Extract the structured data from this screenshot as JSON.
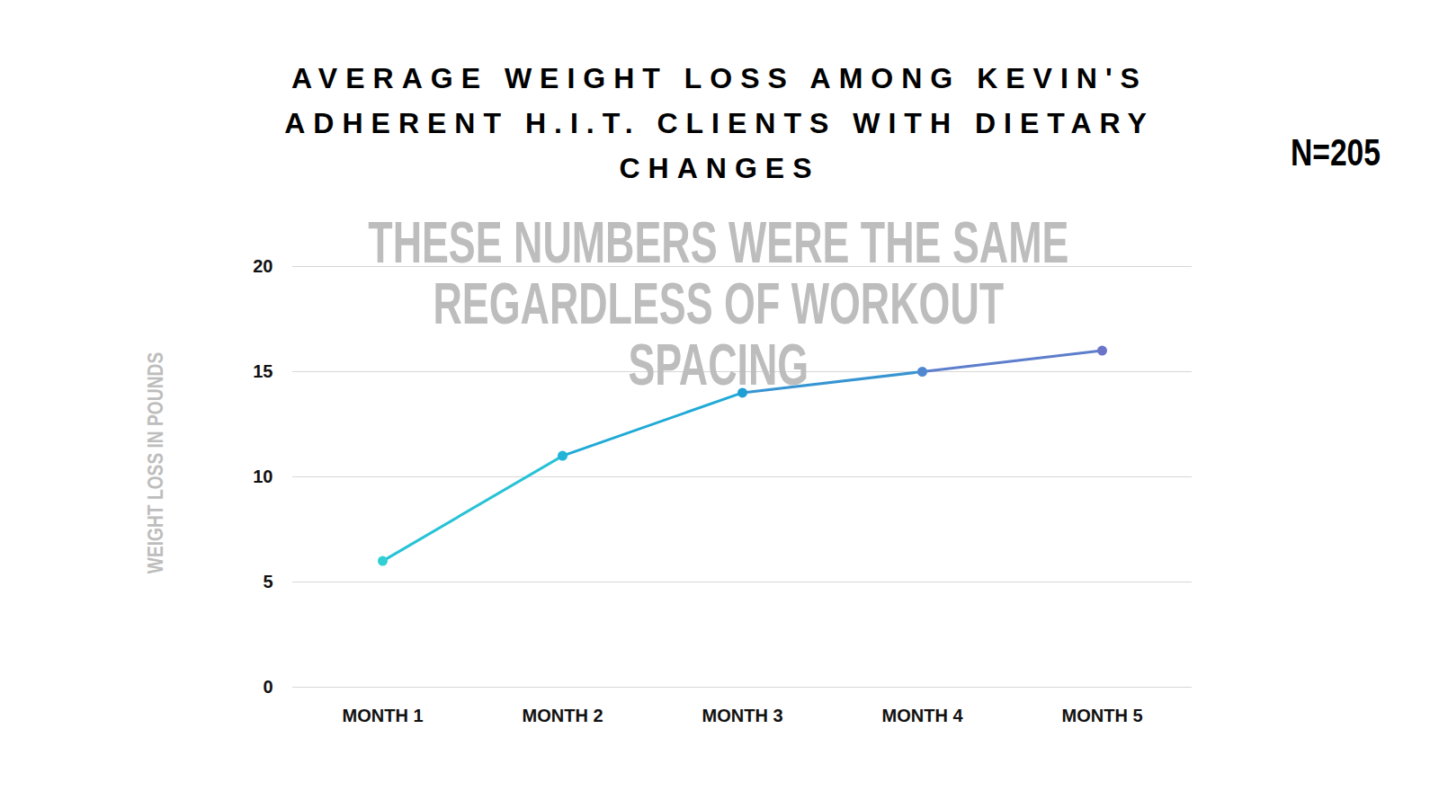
{
  "chart_data": {
    "type": "line",
    "title": "AVERAGE WEIGHT LOSS AMONG KEVIN'S ADHERENT H.I.T. CLIENTS WITH DIETARY CHANGES",
    "ylabel": "WEIGHT LOSS IN POUNDS",
    "annotations": [
      "N=205",
      "THESE NUMBERS WERE THE SAME\nREGARDLESS OF WORKOUT SPACING"
    ],
    "categories": [
      "MONTH 1",
      "MONTH 2",
      "MONTH 3",
      "MONTH 4",
      "MONTH 5"
    ],
    "values": [
      6,
      11,
      14,
      15,
      16
    ],
    "colors": [
      "#2fcfd3",
      "#1fb4d8",
      "#1e9fd3",
      "#4f88d0",
      "#6b74c8"
    ],
    "marker": "circle",
    "line_style": "solid",
    "ylim": [
      0,
      20
    ],
    "yticks": [
      0,
      5,
      10,
      15,
      20
    ],
    "grid": true
  }
}
